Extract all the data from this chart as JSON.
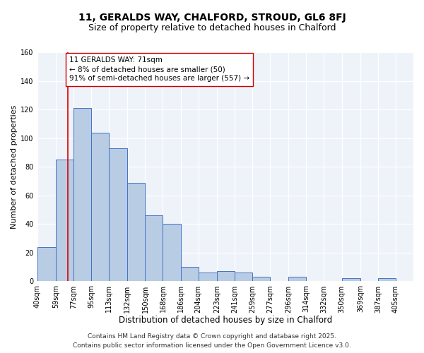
{
  "title": "11, GERALDS WAY, CHALFORD, STROUD, GL6 8FJ",
  "subtitle": "Size of property relative to detached houses in Chalford",
  "xlabel": "Distribution of detached houses by size in Chalford",
  "ylabel": "Number of detached properties",
  "bar_left_edges": [
    40,
    59,
    77,
    95,
    113,
    132,
    150,
    168,
    186,
    204,
    223,
    241,
    259,
    277,
    296,
    314,
    332,
    350,
    369,
    387
  ],
  "bar_heights": [
    24,
    85,
    121,
    104,
    93,
    69,
    46,
    40,
    10,
    6,
    7,
    6,
    3,
    0,
    3,
    0,
    0,
    2,
    0,
    2
  ],
  "bin_widths": [
    19,
    18,
    18,
    18,
    19,
    18,
    18,
    18,
    18,
    19,
    18,
    18,
    18,
    19,
    18,
    18,
    18,
    19,
    18,
    18
  ],
  "tick_labels": [
    "40sqm",
    "59sqm",
    "77sqm",
    "95sqm",
    "113sqm",
    "132sqm",
    "150sqm",
    "168sqm",
    "186sqm",
    "204sqm",
    "223sqm",
    "241sqm",
    "259sqm",
    "277sqm",
    "296sqm",
    "314sqm",
    "332sqm",
    "350sqm",
    "369sqm",
    "387sqm",
    "405sqm"
  ],
  "tick_positions": [
    40,
    59,
    77,
    95,
    113,
    132,
    150,
    168,
    186,
    204,
    223,
    241,
    259,
    277,
    296,
    314,
    332,
    350,
    369,
    387,
    405
  ],
  "ylim": [
    0,
    160
  ],
  "yticks": [
    0,
    20,
    40,
    60,
    80,
    100,
    120,
    140,
    160
  ],
  "xlim_min": 40,
  "xlim_max": 423,
  "bar_color": "#b8cce4",
  "bar_edge_color": "#4472c4",
  "bg_color": "#eef2f9",
  "grid_color": "#ffffff",
  "vline_x": 71,
  "vline_color": "#dd0000",
  "annotation_text": "11 GERALDS WAY: 71sqm\n← 8% of detached houses are smaller (50)\n91% of semi-detached houses are larger (557) →",
  "annotation_box_facecolor": "#ffffff",
  "annotation_box_edgecolor": "#cc0000",
  "footer_text": "Contains HM Land Registry data © Crown copyright and database right 2025.\nContains public sector information licensed under the Open Government Licence v3.0.",
  "title_fontsize": 10,
  "subtitle_fontsize": 9,
  "xlabel_fontsize": 8.5,
  "ylabel_fontsize": 8,
  "tick_fontsize": 7,
  "annotation_fontsize": 7.5,
  "footer_fontsize": 6.5
}
